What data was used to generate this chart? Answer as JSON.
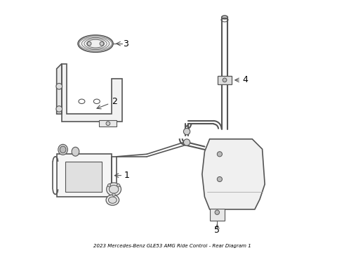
{
  "title": "2023 Mercedes-Benz GLE53 AMG Ride Control - Rear Diagram 1",
  "background_color": "#ffffff",
  "line_color": "#555555",
  "text_color": "#000000",
  "figsize": [
    4.9,
    3.6
  ],
  "dpi": 100
}
